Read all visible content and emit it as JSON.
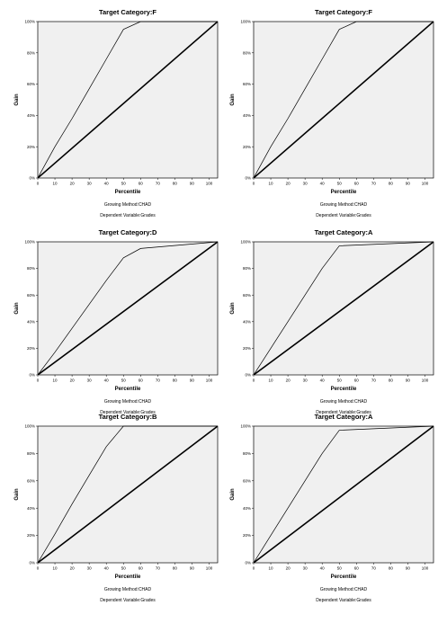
{
  "chart_data": [
    {
      "type": "line",
      "title": "Target Category:F",
      "xlabel": "Percentile",
      "ylabel": "Gain",
      "xlim": [
        0,
        105
      ],
      "ylim": [
        0,
        100
      ],
      "x_ticks": [
        "0",
        "10",
        "20",
        "30",
        "40",
        "50",
        "60",
        "70",
        "80",
        "90",
        "100"
      ],
      "y_ticks": [
        "0%",
        "20%",
        "40%",
        "60%",
        "80%",
        "100%"
      ],
      "footnotes": [
        "Growing Method:CHAD",
        "Dependent Variable:Grades"
      ],
      "series": [
        {
          "x": [
            0,
            5,
            10,
            20,
            30,
            40,
            50,
            60,
            105
          ],
          "y": [
            0,
            10,
            20,
            38,
            57,
            76,
            95,
            100,
            100
          ]
        },
        {
          "x": [
            0,
            105
          ],
          "y": [
            0,
            100
          ]
        }
      ]
    },
    {
      "type": "line",
      "title": "Target Category:F",
      "xlabel": "Percentile",
      "ylabel": "Gain",
      "xlim": [
        0,
        105
      ],
      "ylim": [
        0,
        100
      ],
      "x_ticks": [
        "0",
        "10",
        "20",
        "30",
        "40",
        "50",
        "60",
        "70",
        "80",
        "90",
        "100"
      ],
      "y_ticks": [
        "0%",
        "20%",
        "40%",
        "60%",
        "80%",
        "100%"
      ],
      "footnotes": [
        "Growing Method:CHAD",
        "Dependent Variable:Grades"
      ],
      "series": [
        {
          "x": [
            0,
            5,
            10,
            20,
            30,
            40,
            50,
            60,
            105
          ],
          "y": [
            0,
            10,
            20,
            38,
            57,
            76,
            95,
            100,
            100
          ]
        },
        {
          "x": [
            0,
            105
          ],
          "y": [
            0,
            100
          ]
        }
      ]
    },
    {
      "type": "line",
      "title": "Target Category:D",
      "xlabel": "Percentile",
      "ylabel": "Gain",
      "xlim": [
        0,
        105
      ],
      "ylim": [
        0,
        100
      ],
      "x_ticks": [
        "0",
        "10",
        "20",
        "30",
        "40",
        "50",
        "60",
        "70",
        "80",
        "90",
        "100"
      ],
      "y_ticks": [
        "0%",
        "20%",
        "40%",
        "60%",
        "80%",
        "100%"
      ],
      "footnotes": [
        "Growing Method:CHAD",
        "Dependent Variable:Grades"
      ],
      "series": [
        {
          "x": [
            0,
            10,
            20,
            30,
            40,
            50,
            60,
            105
          ],
          "y": [
            0,
            17,
            35,
            53,
            71,
            88,
            95,
            100
          ]
        },
        {
          "x": [
            0,
            105
          ],
          "y": [
            0,
            100
          ]
        }
      ]
    },
    {
      "type": "line",
      "title": "Target Category:A",
      "xlabel": "Percentile",
      "ylabel": "Gain",
      "xlim": [
        0,
        105
      ],
      "ylim": [
        0,
        100
      ],
      "x_ticks": [
        "0",
        "10",
        "20",
        "30",
        "40",
        "50",
        "60",
        "70",
        "80",
        "90",
        "100"
      ],
      "y_ticks": [
        "0%",
        "20%",
        "40%",
        "60%",
        "80%",
        "100%"
      ],
      "footnotes": [
        "Growing Method:CHAD",
        "Dependent Variable:Grades"
      ],
      "series": [
        {
          "x": [
            0,
            10,
            20,
            30,
            40,
            50,
            105
          ],
          "y": [
            0,
            20,
            40,
            60,
            80,
            97,
            100
          ]
        },
        {
          "x": [
            0,
            105
          ],
          "y": [
            0,
            100
          ]
        }
      ]
    },
    {
      "type": "line",
      "title": "Target Category:B",
      "xlabel": "Percentile",
      "ylabel": "Gain",
      "xlim": [
        0,
        105
      ],
      "ylim": [
        0,
        100
      ],
      "x_ticks": [
        "0",
        "10",
        "20",
        "30",
        "40",
        "50",
        "60",
        "70",
        "80",
        "90",
        "100"
      ],
      "y_ticks": [
        "0%",
        "20%",
        "40%",
        "60%",
        "80%",
        "100%"
      ],
      "footnotes": [
        "Growing Method:CHAD",
        "Dependent Variable:Grades"
      ],
      "series": [
        {
          "x": [
            0,
            10,
            20,
            30,
            40,
            50,
            105
          ],
          "y": [
            0,
            21,
            43,
            64,
            85,
            100,
            100
          ]
        },
        {
          "x": [
            0,
            105
          ],
          "y": [
            0,
            100
          ]
        }
      ]
    },
    {
      "type": "line",
      "title": "Target Category:A",
      "xlabel": "Percentile",
      "ylabel": "Gain",
      "xlim": [
        0,
        105
      ],
      "ylim": [
        0,
        100
      ],
      "x_ticks": [
        "0",
        "10",
        "20",
        "30",
        "40",
        "50",
        "60",
        "70",
        "80",
        "90",
        "100"
      ],
      "y_ticks": [
        "0%",
        "20%",
        "40%",
        "60%",
        "80%",
        "100%"
      ],
      "footnotes": [
        "Growing Method:CHAD",
        "Dependent Variable:Grades"
      ],
      "series": [
        {
          "x": [
            0,
            10,
            20,
            30,
            40,
            50,
            105
          ],
          "y": [
            0,
            20,
            40,
            60,
            80,
            97,
            100
          ]
        },
        {
          "x": [
            0,
            105
          ],
          "y": [
            0,
            100
          ]
        }
      ]
    }
  ]
}
